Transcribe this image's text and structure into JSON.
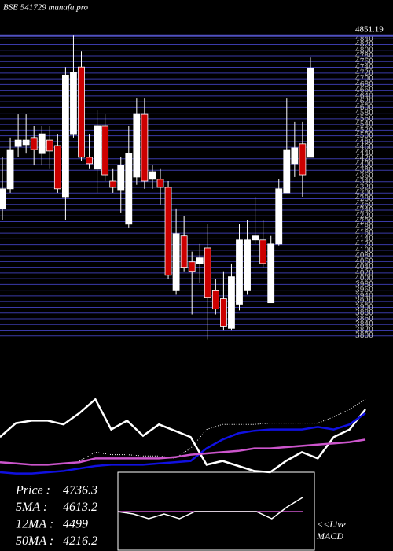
{
  "chart_data": {
    "type": "candlestick",
    "title": "BSE 541729 munafa.pro",
    "price_marker": 4851.19,
    "ylim": [
      3780,
      4860
    ],
    "yticks": [
      3800,
      3820,
      3840,
      3860,
      3880,
      3900,
      3920,
      3940,
      3960,
      3980,
      4000,
      4020,
      4040,
      4060,
      4080,
      4100,
      4120,
      4140,
      4160,
      4180,
      4200,
      4220,
      4240,
      4260,
      4280,
      4300,
      4320,
      4340,
      4360,
      4380,
      4400,
      4420,
      4440,
      4460,
      4480,
      4500,
      4520,
      4540,
      4560,
      4580,
      4600,
      4620,
      4640,
      4660,
      4680,
      4700,
      4720,
      4740,
      4760,
      4780,
      4800,
      4820,
      4840
    ],
    "grid": true,
    "up_color": "#ffffff",
    "down_color": "#cc0000",
    "open": [
      4246,
      4315,
      4463,
      4469,
      4494,
      4438,
      4485,
      4466,
      4287,
      4507,
      4741,
      4425,
      4384,
      4535,
      4342,
      4309,
      4191,
      4356,
      4576,
      4348,
      4348,
      4320,
      3958,
      4150,
      4059,
      4053,
      4108,
      3958,
      3930,
      3826,
      3911,
      3958,
      4136,
      4136,
      3916,
      4122,
      4301,
      4403,
      4472,
      4425
    ],
    "high": [
      4425,
      4494,
      4576,
      4576,
      4535,
      4535,
      4535,
      4507,
      4741,
      4851,
      4796,
      4507,
      4590,
      4576,
      4384,
      4425,
      4535,
      4631,
      4631,
      4397,
      4384,
      4342,
      4246,
      4219,
      4095,
      4122,
      4191,
      3999,
      4026,
      4053,
      4191,
      4205,
      4287,
      4205,
      4150,
      4348,
      4631,
      4549,
      4549,
      4774
    ],
    "low": [
      4205,
      4301,
      4425,
      4438,
      4397,
      4397,
      4384,
      4301,
      4205,
      4494,
      4411,
      4384,
      4301,
      4342,
      4301,
      4232,
      4177,
      4329,
      4315,
      4315,
      4260,
      3999,
      3944,
      4026,
      3875,
      3985,
      3787,
      3875,
      3821,
      3821,
      3889,
      3944,
      4122,
      4040,
      3916,
      4117,
      4301,
      4356,
      4287,
      4425
    ],
    "close": [
      4315,
      4452,
      4485,
      4485,
      4452,
      4507,
      4447,
      4315,
      4713,
      4722,
      4425,
      4403,
      4535,
      4364,
      4320,
      4397,
      4438,
      4576,
      4342,
      4375,
      4320,
      4012,
      4158,
      4040,
      4026,
      4073,
      3935,
      3894,
      3834,
      4007,
      4136,
      4136,
      4150,
      4053,
      4122,
      4315,
      4452,
      4458,
      4364,
      4736
    ],
    "indicator_panel": {
      "ylim": [
        -5,
        100
      ],
      "series": [
        {
          "color": "#ffffff",
          "style": "solid",
          "values": [
            28,
            39,
            41,
            41,
            38,
            47,
            58,
            34,
            41,
            29,
            38,
            33,
            28,
            6,
            9,
            5,
            1,
            0,
            9,
            16,
            11,
            28,
            34,
            50
          ]
        },
        {
          "color": "#ffffff",
          "style": "dotted",
          "values": [
            null,
            null,
            null,
            null,
            null,
            9,
            16,
            14,
            14,
            13,
            13,
            11,
            19,
            34,
            38,
            38,
            38,
            39,
            39,
            39,
            39,
            44,
            50,
            58
          ]
        },
        {
          "color": "#1010e0",
          "style": "solid",
          "values": [
            0,
            -1,
            -1,
            0,
            1,
            3,
            5,
            6,
            6,
            6,
            7,
            8,
            9,
            19,
            26,
            31,
            33,
            34,
            34,
            34,
            36,
            34,
            38,
            47
          ]
        },
        {
          "color": "#cc55cc",
          "style": "solid",
          "values": [
            8,
            7,
            6,
            6,
            7,
            8,
            11,
            11,
            11,
            11,
            11,
            12,
            14,
            15,
            16,
            17,
            19,
            19,
            20,
            21,
            22,
            23,
            24,
            26
          ]
        }
      ]
    },
    "macd_panel": {
      "ylim": [
        -3,
        3
      ],
      "macd": {
        "color": "#ffffff",
        "values": [
          0,
          -0.2,
          -0.6,
          -0.2,
          -0.6,
          0,
          0,
          0,
          0,
          0,
          -0.6,
          0.4,
          1.2
        ]
      },
      "signal": {
        "color": "#cc55cc",
        "values": [
          0,
          0,
          0,
          0,
          0,
          0,
          0,
          0,
          0,
          0,
          0,
          0,
          0
        ]
      },
      "label": [
        "<<Live",
        "MACD"
      ]
    },
    "stats": [
      {
        "label": "Price   :",
        "value": 4736.3
      },
      {
        "label": "5MA :",
        "value": 4613.2
      },
      {
        "label": "12MA :",
        "value": 4499
      },
      {
        "label": "50MA :",
        "value": 4216.2
      }
    ]
  }
}
